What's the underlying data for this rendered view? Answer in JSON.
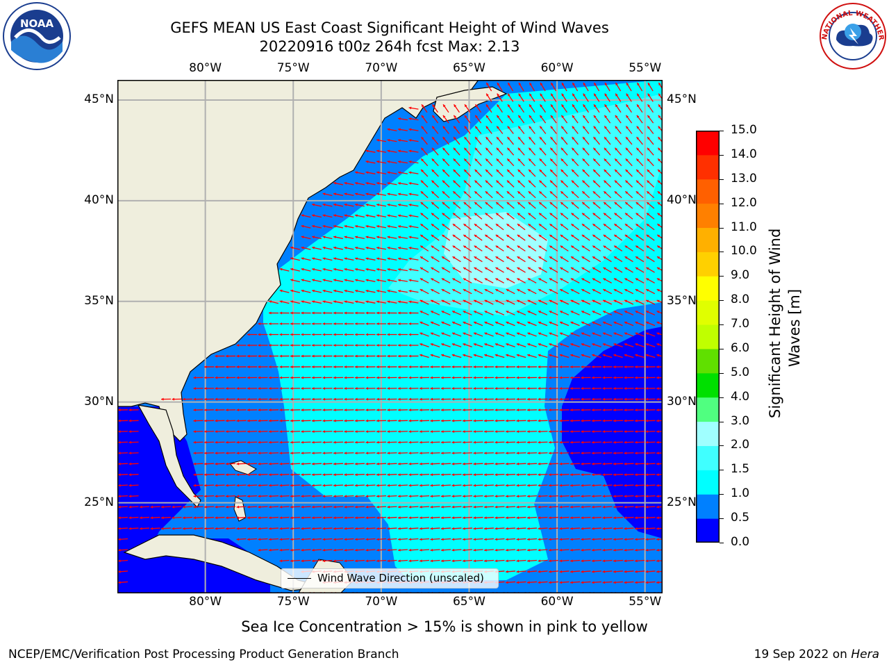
{
  "title": {
    "line1": "GEFS MEAN US East Coast Significant Height of Wind Waves",
    "line2": "20220916 t00z 264h fcst   Max: 2.13"
  },
  "logos": {
    "left": {
      "icon": "noaa-logo-icon",
      "text": "NOAA"
    },
    "right": {
      "icon": "nws-logo-icon",
      "text": "NATIONAL WEATHER SERVICE"
    }
  },
  "map": {
    "lon_labels": [
      "80°W",
      "75°W",
      "70°W",
      "65°W",
      "60°W",
      "55°W"
    ],
    "lat_labels": [
      "45°N",
      "40°N",
      "35°N",
      "30°N",
      "25°N"
    ],
    "lon_values": [
      -80,
      -75,
      -70,
      -65,
      -60,
      -55
    ],
    "lat_values": [
      45,
      40,
      35,
      30,
      25
    ],
    "extent": {
      "lon": [
        -85,
        -54
      ],
      "lat": [
        20.5,
        46
      ]
    },
    "legend": "Wind Wave Direction (unscaled)",
    "colors": {
      "land": "#efeedd",
      "coast": "#000000",
      "arrows": "#ff0000",
      "grid": "#b0b0b0"
    }
  },
  "colorbar": {
    "ticks": [
      "15.0",
      "14.0",
      "13.0",
      "12.0",
      "11.0",
      "10.0",
      "9.0",
      "8.0",
      "7.0",
      "6.0",
      "5.0",
      "4.0",
      "3.0",
      "2.0",
      "1.5",
      "1.0",
      "0.5",
      "0.0"
    ],
    "levels": [
      0,
      0.5,
      1,
      1.5,
      2,
      3,
      4,
      5,
      6,
      7,
      8,
      9,
      10,
      11,
      12,
      13,
      14,
      15
    ],
    "colors": [
      "#0000ff",
      "#0080ff",
      "#00ffff",
      "#40ffff",
      "#a0ffff",
      "#50ff80",
      "#00e000",
      "#60e000",
      "#c0ff00",
      "#e0ff00",
      "#ffff00",
      "#ffd000",
      "#ffb000",
      "#ff8000",
      "#ff6000",
      "#ff3000",
      "#ff0000"
    ],
    "label": "Significant Height of Wind\nWaves [m]",
    "label_line1": "Significant Height of Wind",
    "label_line2": "Waves [m]"
  },
  "note": "Sea Ice Concentration > 15% is shown in pink to yellow",
  "footer": {
    "left": "NCEP/EMC/Verification Post Processing Product Generation Branch",
    "right_date": "19 Sep 2022 on ",
    "right_machine": "Hera"
  }
}
